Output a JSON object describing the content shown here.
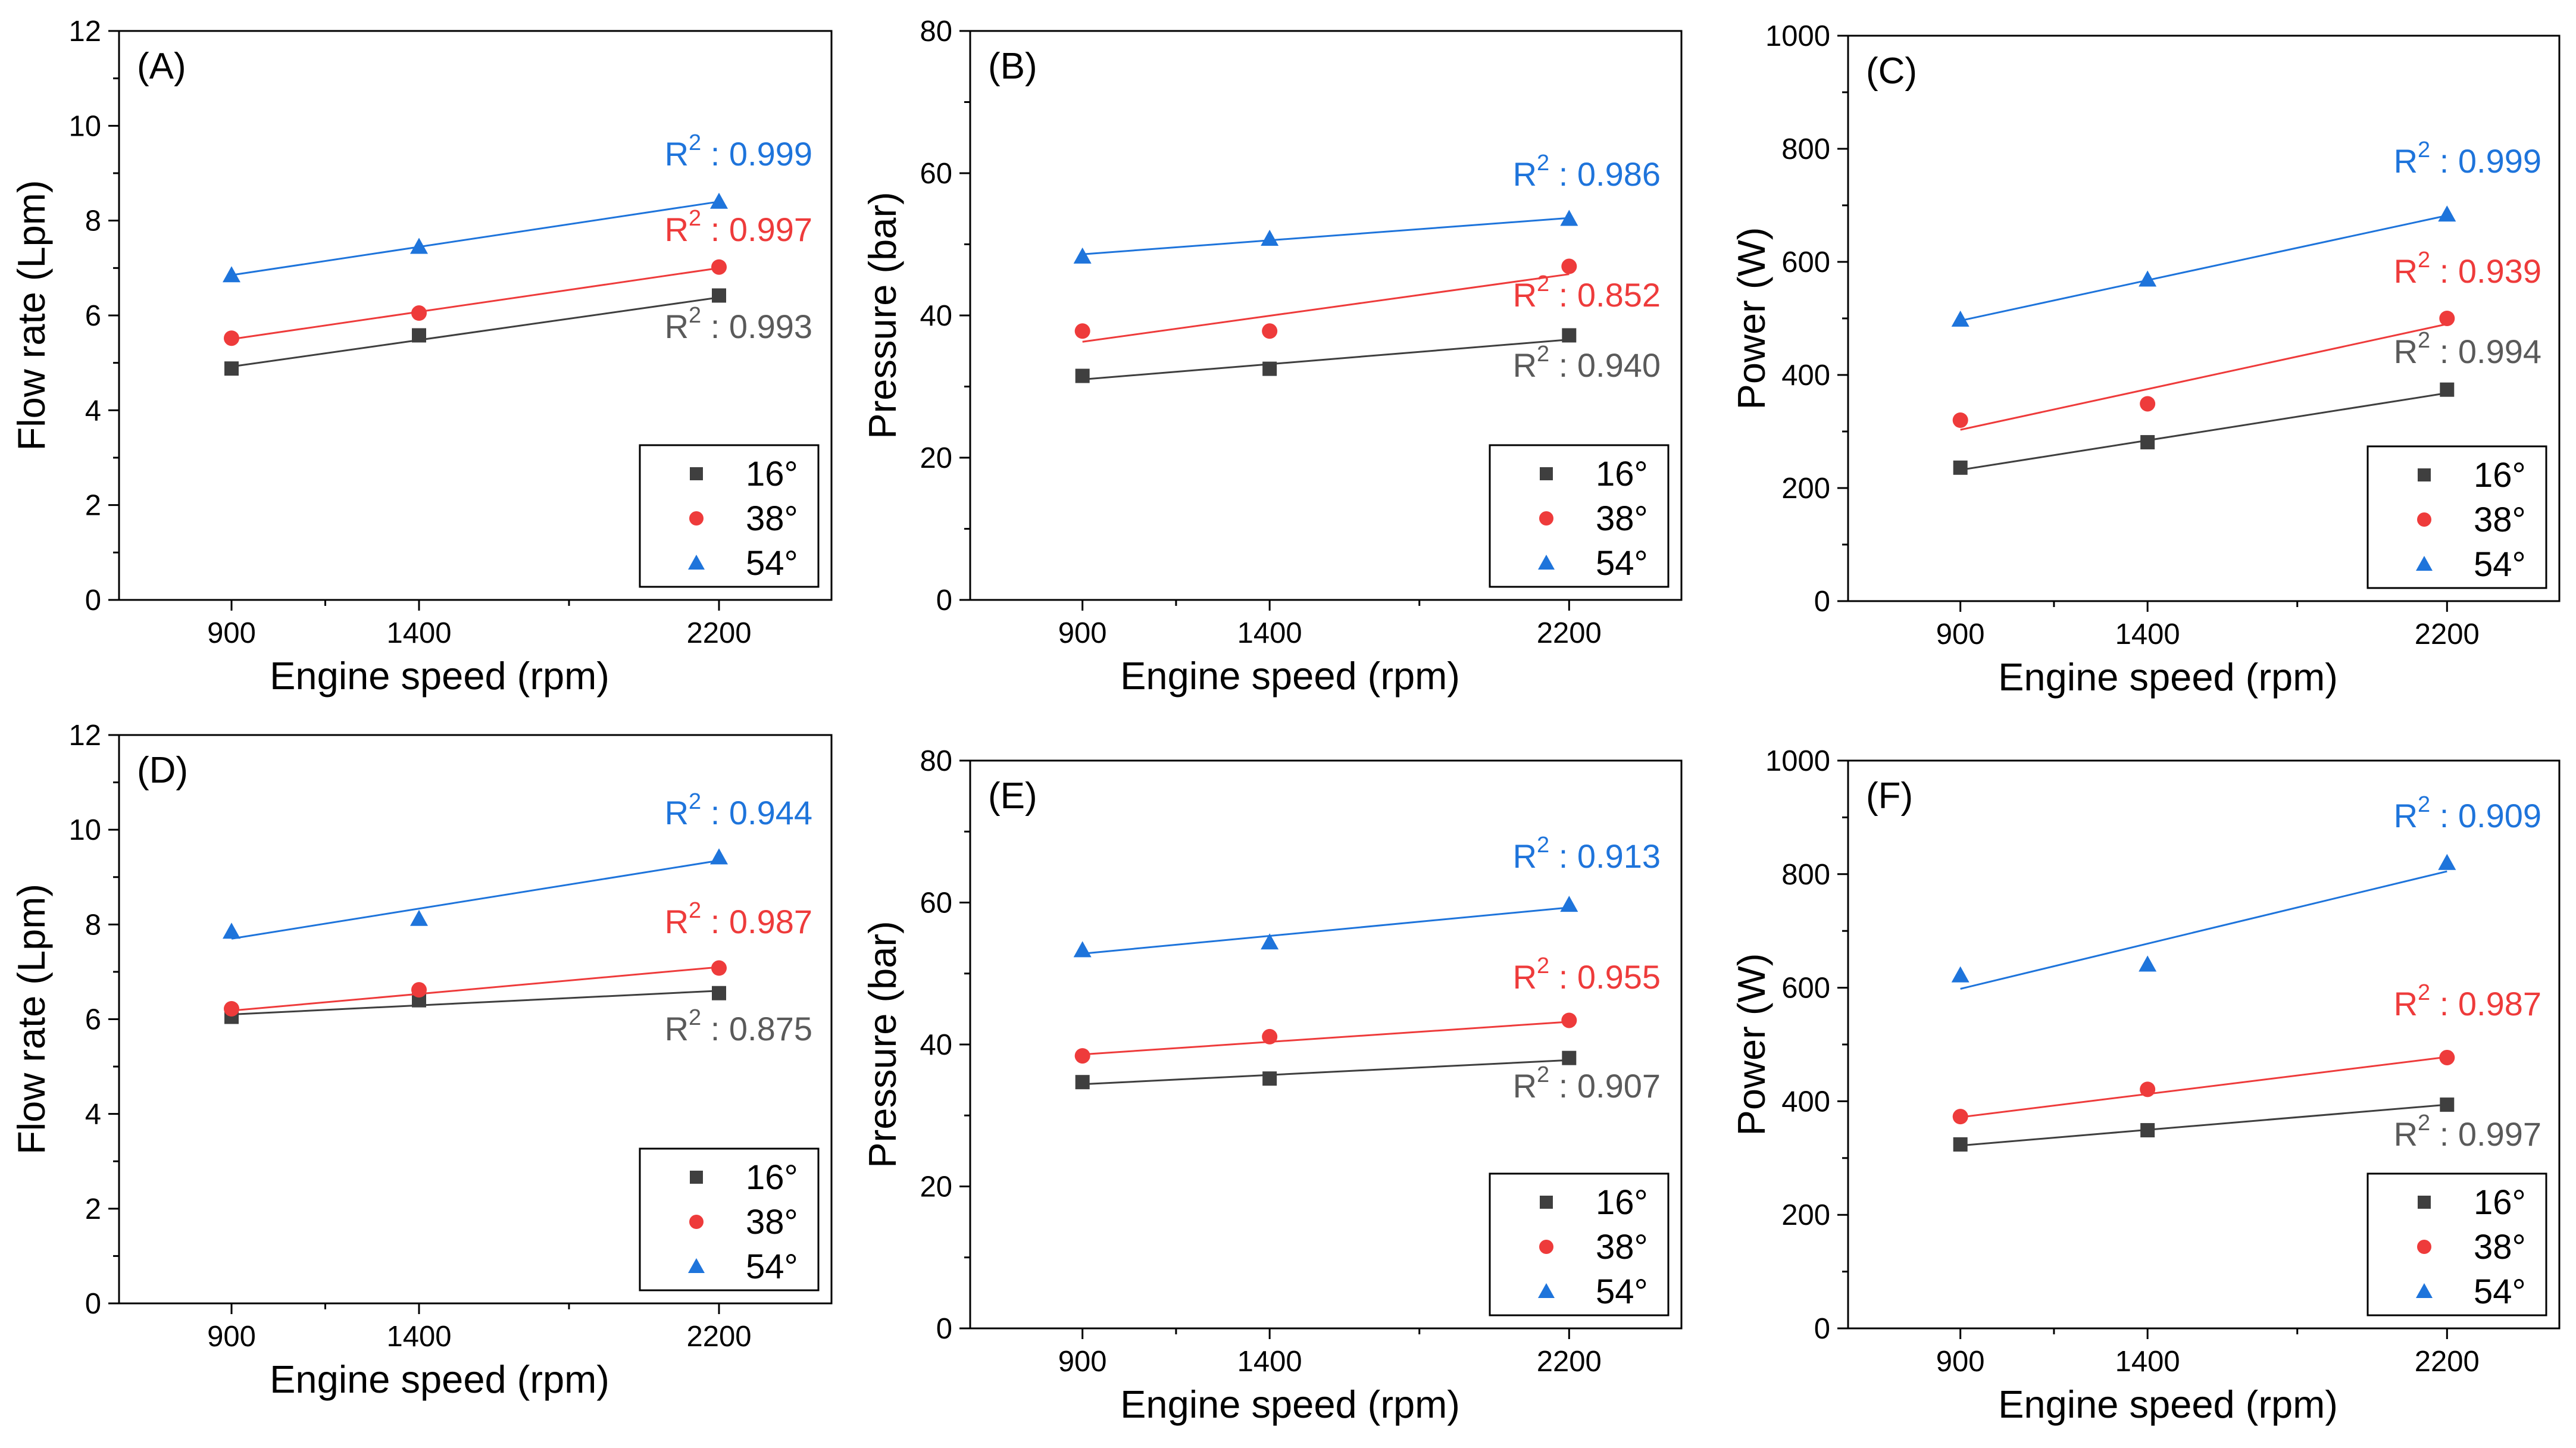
{
  "colors": {
    "16": "#3f3f3f",
    "38": "#ee3b3b",
    "54": "#1e74db",
    "r2_16": "#5a5a5a",
    "r2_38": "#ee3b3b",
    "r2_54": "#1e74db"
  },
  "r2_prefix": "R",
  "r2_sup": "2",
  "r2_sep": " : ",
  "chart_data": [
    {
      "id": "A",
      "type": "scatter",
      "panel_label": "(A)",
      "xlabel": "Engine speed (rpm)",
      "ylabel": "Flow rate (Lpm)",
      "x": [
        900,
        1400,
        2200
      ],
      "xticks": [
        "900",
        "1400",
        "2200"
      ],
      "xlim": [
        600,
        2500
      ],
      "ylim": [
        0,
        12
      ],
      "yticks": [
        "0",
        "2",
        "4",
        "6",
        "8",
        "10",
        "12"
      ],
      "legend": [
        "16°",
        "38°",
        "54°"
      ],
      "legend_position": "bottom-right",
      "series": [
        {
          "name": "16°",
          "key": "16",
          "marker": "square",
          "values": [
            4.88,
            5.58,
            6.42
          ],
          "fit": [
            4.92,
            5.48,
            6.38
          ],
          "r2": "0.993"
        },
        {
          "name": "38°",
          "key": "38",
          "marker": "circle",
          "values": [
            5.52,
            6.05,
            7.02
          ],
          "fit": [
            5.5,
            6.08,
            7.0
          ],
          "r2": "0.997"
        },
        {
          "name": "54°",
          "key": "54",
          "marker": "triangle",
          "values": [
            6.85,
            7.45,
            8.4
          ],
          "fit": [
            6.85,
            7.45,
            8.4
          ],
          "r2": "0.999"
        }
      ]
    },
    {
      "id": "B",
      "type": "scatter",
      "panel_label": "(B)",
      "xlabel": "Engine speed (rpm)",
      "ylabel": "Pressure (bar)",
      "x": [
        900,
        1400,
        2200
      ],
      "xticks": [
        "900",
        "1400",
        "2200"
      ],
      "xlim": [
        600,
        2500
      ],
      "ylim": [
        0,
        80
      ],
      "yticks": [
        "0",
        "20",
        "40",
        "60",
        "80"
      ],
      "legend": [
        "16°",
        "38°",
        "54°"
      ],
      "legend_position": "bottom-right",
      "series": [
        {
          "name": "16°",
          "key": "16",
          "marker": "square",
          "values": [
            31.5,
            32.5,
            37.2
          ],
          "fit": [
            31.0,
            33.1,
            36.6
          ],
          "r2": "0.940"
        },
        {
          "name": "38°",
          "key": "38",
          "marker": "circle",
          "values": [
            37.8,
            37.8,
            46.9
          ],
          "fit": [
            36.3,
            39.7,
            45.8
          ],
          "r2": "0.852"
        },
        {
          "name": "54°",
          "key": "54",
          "marker": "triangle",
          "values": [
            48.3,
            50.8,
            53.6
          ],
          "fit": [
            48.6,
            50.6,
            53.7
          ],
          "r2": "0.986"
        }
      ]
    },
    {
      "id": "C",
      "type": "scatter",
      "panel_label": "(C)",
      "xlabel": "Engine speed (rpm)",
      "ylabel": "Power (W)",
      "x": [
        900,
        1400,
        2200
      ],
      "xticks": [
        "900",
        "1400",
        "2200"
      ],
      "xlim": [
        600,
        2500
      ],
      "ylim": [
        0,
        1000
      ],
      "yticks": [
        "0",
        "200",
        "400",
        "600",
        "800",
        "1000"
      ],
      "legend": [
        "16°",
        "38°",
        "54°"
      ],
      "legend_position": "bottom-right",
      "series": [
        {
          "name": "16°",
          "key": "16",
          "marker": "square",
          "values": [
            236,
            281,
            374
          ],
          "fit": [
            232,
            286,
            368
          ],
          "r2": "0.994"
        },
        {
          "name": "38°",
          "key": "38",
          "marker": "circle",
          "values": [
            320,
            349,
            500
          ],
          "fit": [
            303,
            370,
            490
          ],
          "r2": "0.939"
        },
        {
          "name": "54°",
          "key": "54",
          "marker": "triangle",
          "values": [
            498,
            569,
            684
          ],
          "fit": [
            496,
            568,
            682
          ],
          "r2": "0.999"
        }
      ]
    },
    {
      "id": "D",
      "type": "scatter",
      "panel_label": "(D)",
      "xlabel": "Engine speed (rpm)",
      "ylabel": "Flow rate (Lpm)",
      "x": [
        900,
        1400,
        2200
      ],
      "xticks": [
        "900",
        "1400",
        "2200"
      ],
      "xlim": [
        600,
        2500
      ],
      "ylim": [
        0,
        12
      ],
      "yticks": [
        "0",
        "2",
        "4",
        "6",
        "8",
        "10",
        "12"
      ],
      "legend": [
        "16°",
        "38°",
        "54°"
      ],
      "legend_position": "bottom-right",
      "series": [
        {
          "name": "16°",
          "key": "16",
          "marker": "square",
          "values": [
            6.05,
            6.4,
            6.55
          ],
          "fit": [
            6.1,
            6.32,
            6.6
          ],
          "r2": "0.875"
        },
        {
          "name": "38°",
          "key": "38",
          "marker": "circle",
          "values": [
            6.22,
            6.62,
            7.08
          ],
          "fit": [
            6.18,
            6.55,
            7.1
          ],
          "r2": "0.987"
        },
        {
          "name": "54°",
          "key": "54",
          "marker": "triangle",
          "values": [
            7.85,
            8.12,
            9.42
          ],
          "fit": [
            7.7,
            8.32,
            9.35
          ],
          "r2": "0.944"
        }
      ]
    },
    {
      "id": "E",
      "type": "scatter",
      "panel_label": "(E)",
      "xlabel": "Engine speed (rpm)",
      "ylabel": "Pressure (bar)",
      "x": [
        900,
        1400,
        2200
      ],
      "xticks": [
        "900",
        "1400",
        "2200"
      ],
      "xlim": [
        600,
        2500
      ],
      "ylim": [
        0,
        80
      ],
      "yticks": [
        "0",
        "20",
        "40",
        "60",
        "80"
      ],
      "legend": [
        "16°",
        "38°",
        "54°"
      ],
      "legend_position": "bottom-right",
      "series": [
        {
          "name": "16°",
          "key": "16",
          "marker": "square",
          "values": [
            34.7,
            35.2,
            38.1
          ],
          "fit": [
            34.4,
            35.7,
            37.8
          ],
          "r2": "0.907"
        },
        {
          "name": "38°",
          "key": "38",
          "marker": "circle",
          "values": [
            38.4,
            41.1,
            43.4
          ],
          "fit": [
            38.6,
            40.3,
            43.2
          ],
          "r2": "0.955"
        },
        {
          "name": "54°",
          "key": "54",
          "marker": "triangle",
          "values": [
            53.3,
            54.4,
            59.7
          ],
          "fit": [
            52.8,
            55.2,
            59.3
          ],
          "r2": "0.913"
        }
      ]
    },
    {
      "id": "F",
      "type": "scatter",
      "panel_label": "(F)",
      "xlabel": "Engine speed (rpm)",
      "ylabel": "Power (W)",
      "x": [
        900,
        1400,
        2200
      ],
      "xticks": [
        "900",
        "1400",
        "2200"
      ],
      "xlim": [
        600,
        2500
      ],
      "ylim": [
        0,
        1000
      ],
      "yticks": [
        "0",
        "200",
        "400",
        "600",
        "800",
        "1000"
      ],
      "legend": [
        "16°",
        "38°",
        "54°"
      ],
      "legend_position": "bottom-right",
      "series": [
        {
          "name": "16°",
          "key": "16",
          "marker": "square",
          "values": [
            324,
            349,
            394
          ],
          "fit": [
            322,
            350,
            394
          ],
          "r2": "0.997"
        },
        {
          "name": "38°",
          "key": "38",
          "marker": "circle",
          "values": [
            373,
            421,
            477
          ],
          "fit": [
            372,
            412,
            478
          ],
          "r2": "0.987"
        },
        {
          "name": "54°",
          "key": "54",
          "marker": "triangle",
          "values": [
            622,
            641,
            820
          ],
          "fit": [
            598,
            680,
            805
          ],
          "r2": "0.909"
        }
      ]
    }
  ]
}
